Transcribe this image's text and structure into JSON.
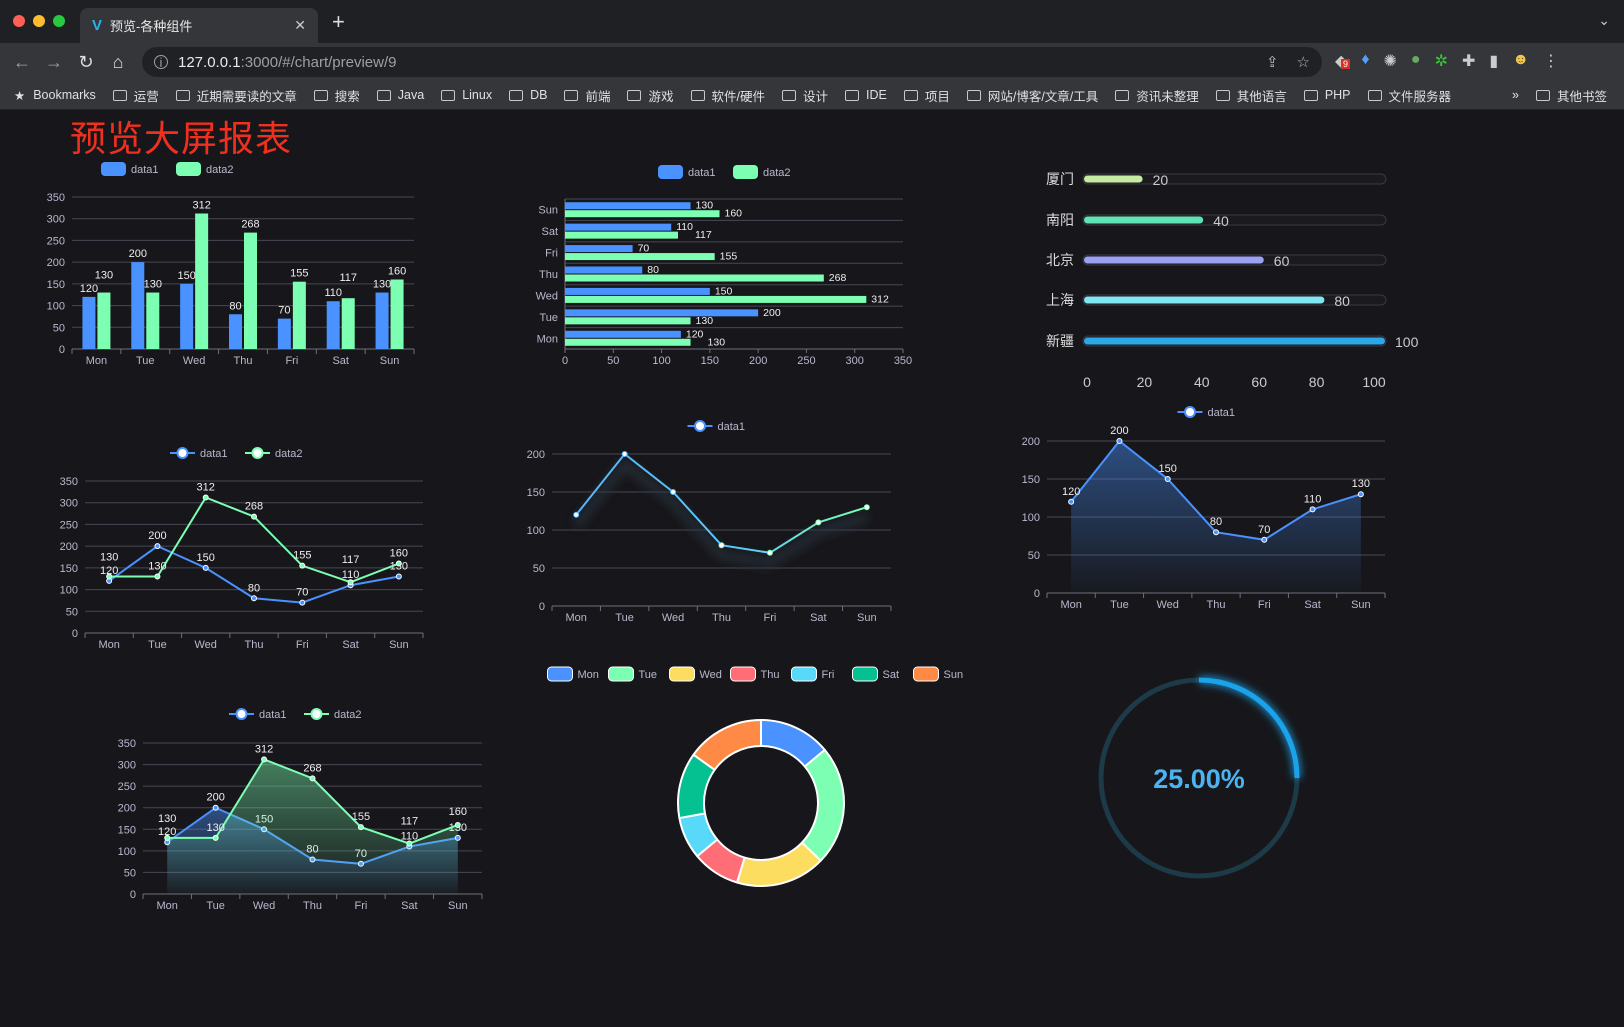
{
  "browser": {
    "tab_title": "预览-各种组件",
    "tab_icon": "vue-logo-icon",
    "url_host": "127.0.0.1",
    "url_rest": ":3000/#/chart/preview/9",
    "extension_badge": "9",
    "bookmarks": [
      "Bookmarks",
      "运营",
      "近期需要读的文章",
      "搜索",
      "Java",
      "Linux",
      "DB",
      "前端",
      "游戏",
      "软件/硬件",
      "设计",
      "IDE",
      "项目",
      "网站/博客/文章/工具",
      "资讯未整理",
      "其他语言",
      "PHP",
      "文件服务器"
    ],
    "bookmarks_more": "»",
    "other_bookmarks": "其他书签"
  },
  "page": {
    "title": "预览大屏报表",
    "title_color": "#f0301e"
  },
  "colors": {
    "data1": "#4992ff",
    "data2": "#7cffb2",
    "pie": [
      "#4992ff",
      "#7cffb2",
      "#fddd60",
      "#ff6e76",
      "#58d9f9",
      "#05c091",
      "#ff8a45"
    ],
    "gauge": "#1aa3ea"
  },
  "chart_data": [
    {
      "id": "bar",
      "type": "bar",
      "categories": [
        "Mon",
        "Tue",
        "Wed",
        "Thu",
        "Fri",
        "Sat",
        "Sun"
      ],
      "series": [
        {
          "name": "data1",
          "values": [
            120,
            200,
            150,
            80,
            70,
            110,
            130
          ]
        },
        {
          "name": "data2",
          "values": [
            130,
            130,
            312,
            268,
            155,
            117,
            160
          ]
        }
      ],
      "ylim": [
        0,
        350
      ],
      "yinterval": 50,
      "legend": "top",
      "labels": true
    },
    {
      "id": "hbar",
      "type": "bar",
      "orientation": "horizontal",
      "categories": [
        "Mon",
        "Tue",
        "Wed",
        "Thu",
        "Fri",
        "Sat",
        "Sun"
      ],
      "series": [
        {
          "name": "data1",
          "values": [
            120,
            200,
            150,
            80,
            70,
            110,
            130
          ]
        },
        {
          "name": "data2",
          "values": [
            130,
            130,
            312,
            268,
            155,
            117,
            160
          ]
        }
      ],
      "xlim": [
        0,
        350
      ],
      "xinterval": 50,
      "legend": "top",
      "labels": true
    },
    {
      "id": "progress",
      "type": "bar",
      "orientation": "horizontal",
      "categories": [
        "厦门",
        "南阳",
        "北京",
        "上海",
        "新疆"
      ],
      "values": [
        20,
        40,
        60,
        80,
        100
      ],
      "colors": [
        "#c6eaa2",
        "#5fe3b4",
        "#9aa0f2",
        "#7fe6f2",
        "#2aa8e8"
      ],
      "xlim": [
        0,
        100
      ],
      "xinterval": 20,
      "labels": true
    },
    {
      "id": "line1",
      "type": "line",
      "categories": [
        "Mon",
        "Tue",
        "Wed",
        "Thu",
        "Fri",
        "Sat",
        "Sun"
      ],
      "series": [
        {
          "name": "data1",
          "values": [
            120,
            200,
            150,
            80,
            70,
            110,
            130
          ]
        },
        {
          "name": "data2",
          "values": [
            130,
            130,
            312,
            268,
            155,
            117,
            160
          ]
        }
      ],
      "ylim": [
        0,
        350
      ],
      "yinterval": 50,
      "legend": "top",
      "labels": true
    },
    {
      "id": "line2",
      "type": "line",
      "gradient": true,
      "categories": [
        "Mon",
        "Tue",
        "Wed",
        "Thu",
        "Fri",
        "Sat",
        "Sun"
      ],
      "series": [
        {
          "name": "data1",
          "values": [
            120,
            200,
            150,
            80,
            70,
            110,
            130
          ]
        }
      ],
      "ylim": [
        0,
        200
      ],
      "yinterval": 50,
      "legend": "top",
      "labels": false
    },
    {
      "id": "area1",
      "type": "area",
      "categories": [
        "Mon",
        "Tue",
        "Wed",
        "Thu",
        "Fri",
        "Sat",
        "Sun"
      ],
      "series": [
        {
          "name": "data1",
          "values": [
            120,
            200,
            150,
            80,
            70,
            110,
            130
          ]
        }
      ],
      "ylim": [
        0,
        200
      ],
      "yinterval": 50,
      "legend": "top",
      "labels": true
    },
    {
      "id": "area2",
      "type": "area",
      "categories": [
        "Mon",
        "Tue",
        "Wed",
        "Thu",
        "Fri",
        "Sat",
        "Sun"
      ],
      "series": [
        {
          "name": "data1",
          "values": [
            120,
            200,
            150,
            80,
            70,
            110,
            130
          ]
        },
        {
          "name": "data2",
          "values": [
            130,
            130,
            312,
            268,
            155,
            117,
            160
          ]
        }
      ],
      "ylim": [
        0,
        350
      ],
      "yinterval": 50,
      "legend": "top",
      "labels": true
    },
    {
      "id": "pie",
      "type": "pie",
      "donut": true,
      "categories": [
        "Mon",
        "Tue",
        "Wed",
        "Thu",
        "Fri",
        "Sat",
        "Sun"
      ],
      "values": [
        120,
        200,
        150,
        80,
        70,
        110,
        130
      ],
      "legend": "top"
    },
    {
      "id": "gauge",
      "type": "gauge",
      "value": 25,
      "max": 100,
      "label": "25.00%"
    }
  ]
}
